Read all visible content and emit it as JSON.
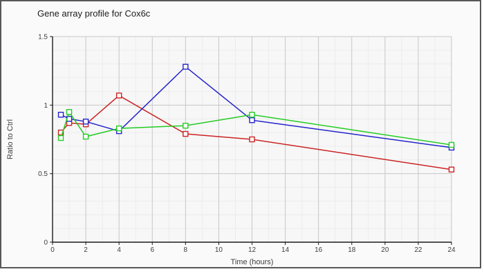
{
  "chart_data": {
    "type": "line",
    "title": "Gene array profile for Cox6c",
    "xlabel": "Time (hours)",
    "ylabel": "Ratio to Ctrl",
    "xlim": [
      0,
      24
    ],
    "ylim": [
      0,
      1.5
    ],
    "xticks": [
      "0",
      "2",
      "4",
      "6",
      "8",
      "10",
      "12",
      "14",
      "16",
      "18",
      "20",
      "22",
      "24"
    ],
    "xtick_values": [
      0,
      2,
      4,
      6,
      8,
      10,
      12,
      14,
      16,
      18,
      20,
      22,
      24
    ],
    "ytick_labels": [
      "0",
      "0.5",
      "1",
      "1.5"
    ],
    "ytick_values": [
      0,
      0.5,
      1,
      1.5
    ],
    "x_minor_step": 1,
    "y_minor_step": 0.1,
    "grid": true,
    "legend_position": "none",
    "marker": "open-square",
    "x": [
      0.5,
      1,
      2,
      4,
      8,
      12,
      24
    ],
    "series": [
      {
        "name": "red-series",
        "color": "#cc2222",
        "values": [
          0.8,
          0.87,
          0.86,
          1.07,
          0.79,
          0.75,
          0.53
        ]
      },
      {
        "name": "blue-series",
        "color": "#2222cc",
        "values": [
          0.93,
          0.9,
          0.88,
          0.81,
          1.28,
          0.89,
          0.69
        ]
      },
      {
        "name": "green-series",
        "color": "#22cc22",
        "values": [
          0.76,
          0.95,
          0.77,
          0.83,
          0.85,
          0.93,
          0.71
        ]
      }
    ],
    "colors": {
      "major_grid": "#c7c7c7",
      "minor_grid": "#ececec",
      "axis": "#1a1a1a",
      "tick_text": "#3c3c3c",
      "plot_bg": "#f7f7f7"
    }
  }
}
